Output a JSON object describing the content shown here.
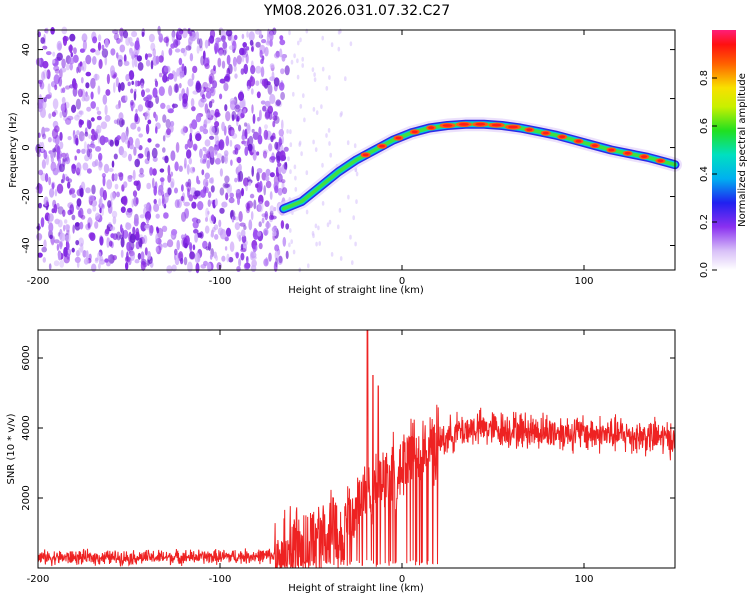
{
  "title": "YM08.2026.031.07.32.C27",
  "chart_data": [
    {
      "type": "heatmap",
      "name": "spectrogram",
      "xlabel": "Height of straight line (km)",
      "ylabel": "Frequency (Hz)",
      "xlim": [
        -200,
        150
      ],
      "ylim": [
        -50,
        48
      ],
      "xticks": [
        -200,
        -100,
        0,
        100
      ],
      "yticks": [
        -40,
        -20,
        0,
        20,
        40
      ],
      "noise_region_x": [
        -200,
        -63
      ],
      "trace": {
        "x": [
          -65,
          -55,
          -45,
          -35,
          -25,
          -15,
          -5,
          5,
          15,
          25,
          35,
          45,
          55,
          65,
          75,
          85,
          95,
          105,
          115,
          125,
          135,
          145,
          150
        ],
        "y": [
          -25,
          -22,
          -16,
          -10,
          -5,
          -1,
          3,
          6,
          8,
          9,
          9.5,
          9.5,
          9,
          8,
          6.5,
          5,
          3,
          1,
          -1,
          -2.5,
          -4,
          -6,
          -7
        ]
      },
      "colorbar": {
        "label": "Normalized spectral amplitude",
        "range": [
          0,
          1
        ],
        "ticks": [
          0.0,
          0.2,
          0.4,
          0.6,
          0.8
        ],
        "tick_labels": [
          "0.0",
          "0.2",
          "0.4",
          "0.6",
          "0.8"
        ]
      }
    },
    {
      "type": "line",
      "name": "snr",
      "xlabel": "Height of straight line (km)",
      "ylabel": "SNR (10 * v/v)",
      "xlim": [
        -200,
        150
      ],
      "ylim": [
        0,
        6800
      ],
      "xticks": [
        -200,
        -100,
        0,
        100
      ],
      "yticks": [
        2000,
        4000,
        6000
      ],
      "color": "#ee2222",
      "envelope": {
        "x": [
          -200,
          -150,
          -100,
          -70,
          -60,
          -50,
          -40,
          -30,
          -20,
          -10,
          0,
          10,
          20,
          30,
          40,
          60,
          80,
          100,
          120,
          150
        ],
        "y": [
          300,
          300,
          320,
          350,
          500,
          800,
          1100,
          1500,
          2100,
          2500,
          2900,
          3300,
          3600,
          3900,
          4000,
          3950,
          3900,
          3850,
          3800,
          3700
        ]
      },
      "spikes": [
        {
          "x": -19,
          "value": 6800
        },
        {
          "x": -16,
          "value": 5500
        },
        {
          "x": -13,
          "value": 5200
        }
      ]
    }
  ]
}
